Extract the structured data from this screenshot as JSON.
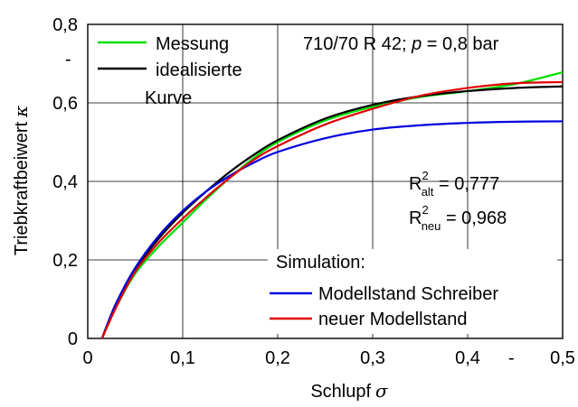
{
  "chart_data": {
    "type": "line",
    "title": "",
    "xlabel": "Schlupf",
    "xlabel_symbol": "σ",
    "ylabel": "Triebkraftbeiwert",
    "ylabel_symbol": "κ",
    "xlim": [
      0,
      0.5
    ],
    "ylim": [
      0,
      0.8
    ],
    "x_ticks": [
      "0",
      "0,1",
      "0,2",
      "0,3",
      "0,4",
      "0,5"
    ],
    "x_tick_values": [
      0,
      0.1,
      0.2,
      0.3,
      0.4,
      0.5
    ],
    "y_ticks": [
      "0",
      "0,2",
      "0,4",
      "0,6",
      "0,8"
    ],
    "y_tick_values": [
      0,
      0.2,
      0.4,
      0.6,
      0.8
    ],
    "stray_marks": [
      "-",
      "-"
    ],
    "grid": true,
    "annotations": {
      "condition": "710/70 R 42; p = 0,8 bar",
      "r2_old_label": "R",
      "r2_old_sup": "2",
      "r2_old_sub": "alt",
      "r2_old_value": " = 0,777",
      "r2_new_label": "R",
      "r2_new_sup": "2",
      "r2_new_sub": "neu",
      "r2_new_value": " = 0,968",
      "simulation_heading": "Simulation:"
    },
    "legend_top": [
      "Messung",
      "idealisierte",
      "Kurve"
    ],
    "legend_bottom": [
      "Modellstand Schreiber",
      "neuer Modellstand"
    ],
    "series": [
      {
        "name": "Messung",
        "color": "#00e000",
        "x": [
          0.015,
          0.03,
          0.05,
          0.075,
          0.1,
          0.125,
          0.15,
          0.175,
          0.2,
          0.25,
          0.3,
          0.35,
          0.4,
          0.45,
          0.5
        ],
        "y": [
          0.0,
          0.08,
          0.165,
          0.235,
          0.295,
          0.355,
          0.41,
          0.46,
          0.5,
          0.555,
          0.59,
          0.615,
          0.63,
          0.648,
          0.678
        ]
      },
      {
        "name": "idealisierte Kurve",
        "color": "#000000",
        "x": [
          0.015,
          0.03,
          0.05,
          0.075,
          0.1,
          0.125,
          0.15,
          0.175,
          0.2,
          0.25,
          0.3,
          0.35,
          0.4,
          0.45,
          0.5
        ],
        "y": [
          0.0,
          0.09,
          0.175,
          0.255,
          0.32,
          0.375,
          0.425,
          0.468,
          0.505,
          0.56,
          0.595,
          0.617,
          0.63,
          0.638,
          0.642
        ]
      },
      {
        "name": "Modellstand Schreiber",
        "color": "#0000e0",
        "x": [
          0.015,
          0.03,
          0.05,
          0.075,
          0.1,
          0.125,
          0.15,
          0.175,
          0.2,
          0.25,
          0.3,
          0.35,
          0.4,
          0.45,
          0.5
        ],
        "y": [
          0.0,
          0.09,
          0.18,
          0.262,
          0.325,
          0.375,
          0.415,
          0.448,
          0.475,
          0.51,
          0.532,
          0.543,
          0.549,
          0.552,
          0.553
        ]
      },
      {
        "name": "neuer Modellstand",
        "color": "#e00000",
        "x": [
          0.015,
          0.03,
          0.05,
          0.075,
          0.1,
          0.125,
          0.15,
          0.175,
          0.2,
          0.25,
          0.3,
          0.35,
          0.4,
          0.45,
          0.5
        ],
        "y": [
          0.0,
          0.08,
          0.17,
          0.245,
          0.305,
          0.36,
          0.41,
          0.455,
          0.49,
          0.545,
          0.585,
          0.618,
          0.638,
          0.65,
          0.653
        ]
      }
    ]
  }
}
